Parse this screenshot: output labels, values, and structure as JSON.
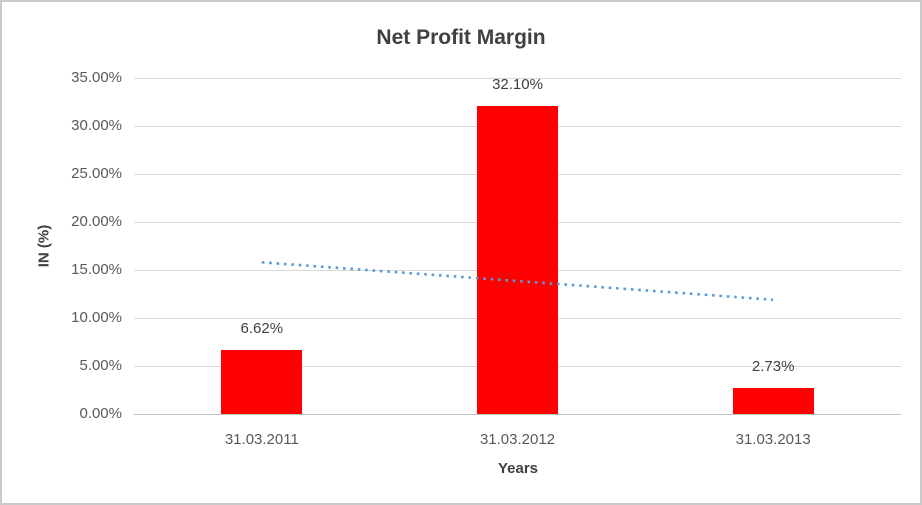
{
  "chart_data": {
    "type": "bar",
    "title": "Net Profit Margin",
    "categories": [
      "31.03.2011",
      "31.03.2012",
      "31.03.2013"
    ],
    "values": [
      6.62,
      32.1,
      2.73
    ],
    "data_labels": [
      "6.62%",
      "32.10%",
      "2.73%"
    ],
    "xlabel": "Years",
    "ylabel": "IN (%)",
    "ylim": [
      0,
      35
    ],
    "grid": true,
    "legend": "none",
    "yticks": [
      {
        "value": 0,
        "label": "0.00%"
      },
      {
        "value": 5,
        "label": "5.00%"
      },
      {
        "value": 10,
        "label": "10.00%"
      },
      {
        "value": 15,
        "label": "15.00%"
      },
      {
        "value": 20,
        "label": "20.00%"
      },
      {
        "value": 25,
        "label": "25.00%"
      },
      {
        "value": 30,
        "label": "30.00%"
      },
      {
        "value": 35,
        "label": "35.00%"
      }
    ],
    "trendline": {
      "type": "linear",
      "style": "dotted",
      "color": "#5b9bd5",
      "start_value": 15.8,
      "end_value": 11.9
    },
    "colors": {
      "bar": "#ff0000",
      "gridline": "#d9d9d9",
      "axis_line": "#c0c0c0",
      "tick_text": "#595959",
      "title_text": "#404040",
      "frame_border": "#c9c9c9"
    }
  }
}
